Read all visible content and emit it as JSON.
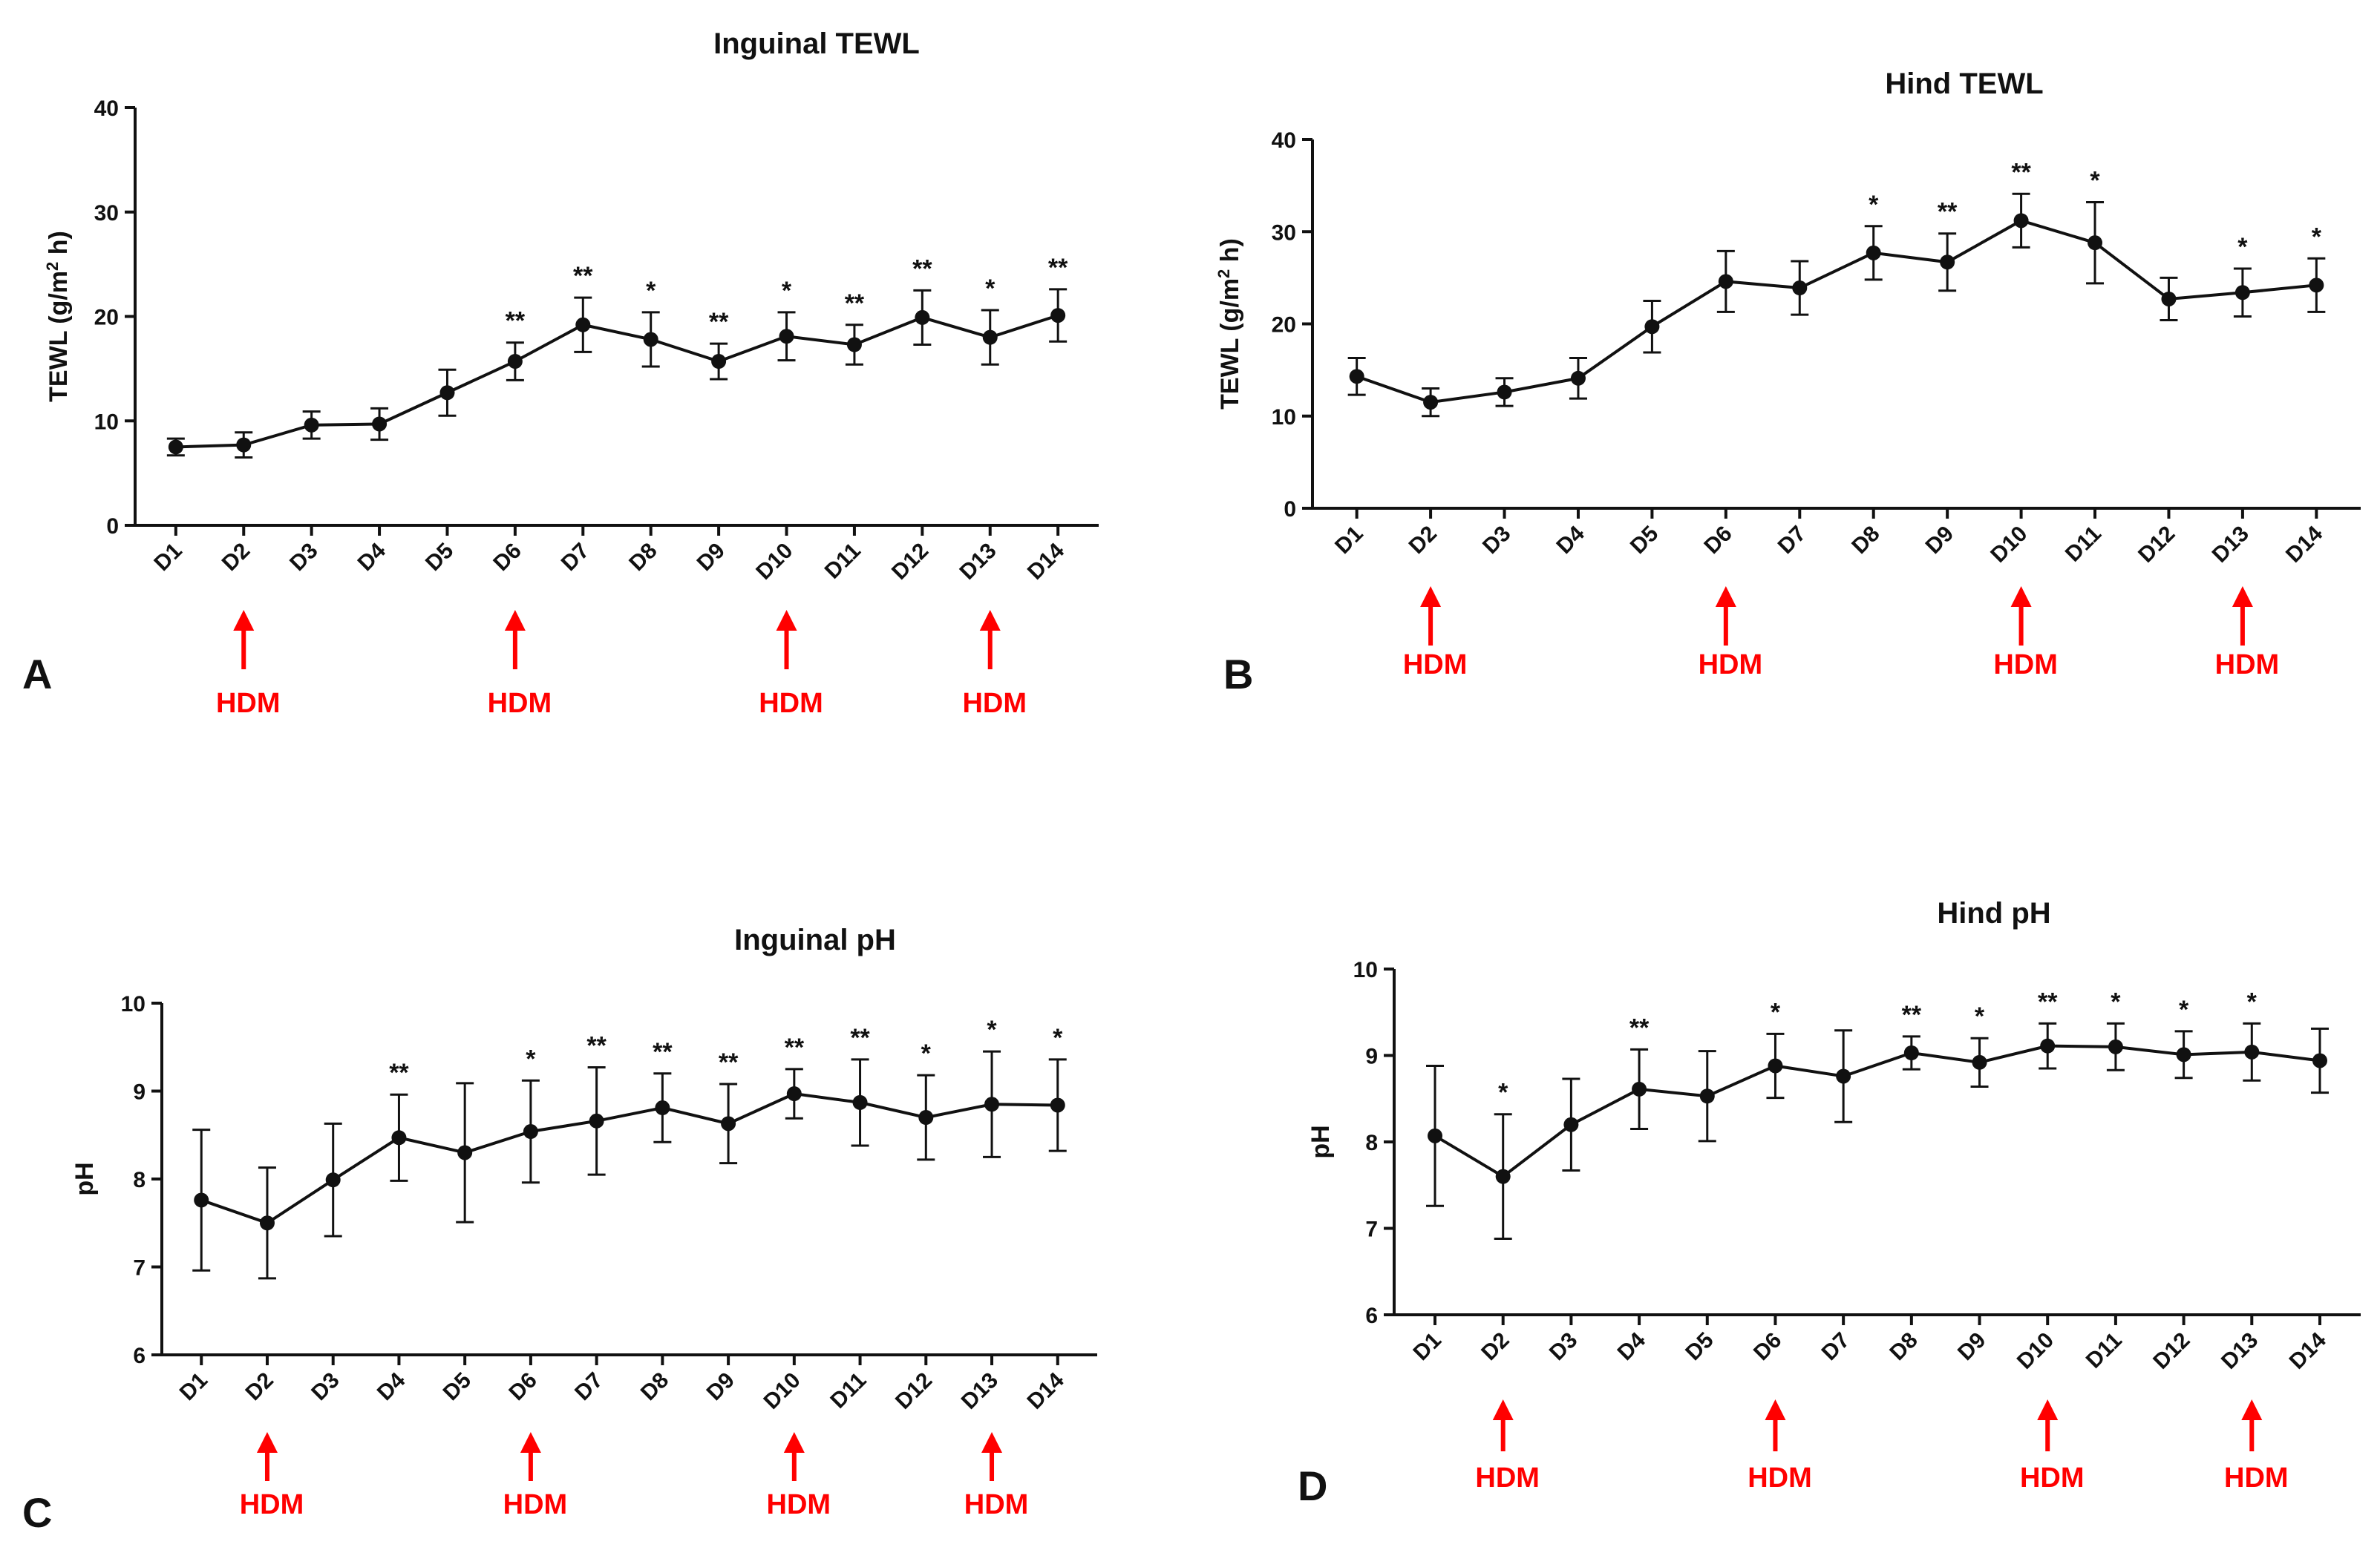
{
  "figure": {
    "arrow_color": "#ff0000",
    "line_color": "#111111"
  },
  "chart_data": [
    {
      "panel": "A",
      "type": "line",
      "title": "Inguinal TEWL",
      "ylabel_pre": "TEWL (g/m",
      "ylabel_sup": "2",
      "ylabel_post": " h)",
      "xlabel": "",
      "categories": [
        "D1",
        "D2",
        "D3",
        "D4",
        "D5",
        "D6",
        "D7",
        "D8",
        "D9",
        "D10",
        "D11",
        "D12",
        "D13",
        "D14"
      ],
      "ylim": [
        0,
        40
      ],
      "yticks": [
        0,
        10,
        20,
        30,
        40
      ],
      "ytick_labels": [
        "0",
        "10",
        "20",
        "30",
        "40"
      ],
      "series": [
        {
          "name": "Inguinal TEWL",
          "values": [
            7.5,
            7.7,
            9.6,
            9.7,
            12.7,
            15.7,
            19.2,
            17.8,
            15.7,
            18.1,
            17.3,
            19.9,
            18.0,
            20.1
          ],
          "errors": [
            0.8,
            1.2,
            1.3,
            1.5,
            2.2,
            1.8,
            2.6,
            2.6,
            1.7,
            2.3,
            1.9,
            2.6,
            2.6,
            2.5
          ]
        }
      ],
      "significance": [
        "",
        "",
        "",
        "",
        "",
        "**",
        "**",
        "*",
        "**",
        "*",
        "**",
        "**",
        "*",
        "**"
      ],
      "hdm_label": "HDM",
      "hdm_days": [
        "D2",
        "D6",
        "D10",
        "D13"
      ]
    },
    {
      "panel": "B",
      "type": "line",
      "title": "Hind TEWL",
      "ylabel_pre": "TEWL (g/m",
      "ylabel_sup": "2",
      "ylabel_post": " h)",
      "xlabel": "",
      "categories": [
        "D1",
        "D2",
        "D3",
        "D4",
        "D5",
        "D6",
        "D7",
        "D8",
        "D9",
        "D10",
        "D11",
        "D12",
        "D13",
        "D14"
      ],
      "ylim": [
        0,
        40
      ],
      "yticks": [
        0,
        10,
        20,
        30,
        40
      ],
      "ytick_labels": [
        "0",
        "10",
        "20",
        "30",
        "40"
      ],
      "series": [
        {
          "name": "Hind TEWL",
          "values": [
            14.3,
            11.5,
            12.6,
            14.1,
            19.7,
            24.6,
            23.9,
            27.7,
            26.7,
            31.2,
            28.8,
            22.7,
            23.4,
            24.2
          ],
          "errors": [
            2.0,
            1.5,
            1.5,
            2.2,
            2.8,
            3.3,
            2.9,
            2.9,
            3.1,
            2.9,
            4.4,
            2.3,
            2.6,
            2.9
          ]
        }
      ],
      "significance": [
        "",
        "",
        "",
        "",
        "",
        "",
        "",
        "*",
        "**",
        "**",
        "*",
        "",
        "*",
        "*"
      ],
      "hdm_label": "HDM",
      "hdm_days": [
        "D2",
        "D6",
        "D10",
        "D13"
      ]
    },
    {
      "panel": "C",
      "type": "line",
      "title": "Inguinal pH",
      "ylabel_pre": "pH",
      "ylabel_sup": "",
      "ylabel_post": "",
      "xlabel": "",
      "categories": [
        "D1",
        "D2",
        "D3",
        "D4",
        "D5",
        "D6",
        "D7",
        "D8",
        "D9",
        "D10",
        "D11",
        "D12",
        "D13",
        "D14"
      ],
      "ylim": [
        6,
        10
      ],
      "yticks": [
        6,
        7,
        8,
        9,
        10
      ],
      "ytick_labels": [
        "6",
        "7",
        "8",
        "9",
        "10"
      ],
      "series": [
        {
          "name": "Inguinal pH",
          "values": [
            7.76,
            7.5,
            7.99,
            8.47,
            8.3,
            8.54,
            8.66,
            8.81,
            8.63,
            8.97,
            8.87,
            8.7,
            8.85,
            8.84
          ],
          "errors": [
            0.8,
            0.63,
            0.64,
            0.49,
            0.79,
            0.58,
            0.61,
            0.39,
            0.45,
            0.28,
            0.49,
            0.48,
            0.6,
            0.52
          ]
        }
      ],
      "significance": [
        "",
        "",
        "",
        "**",
        "",
        "*",
        "**",
        "**",
        "**",
        "**",
        "**",
        "*",
        "*",
        "*"
      ],
      "hdm_label": "HDM",
      "hdm_days": [
        "D2",
        "D6",
        "D10",
        "D13"
      ]
    },
    {
      "panel": "D",
      "type": "line",
      "title": "Hind pH",
      "ylabel_pre": "pH",
      "ylabel_sup": "",
      "ylabel_post": "",
      "xlabel": "",
      "categories": [
        "D1",
        "D2",
        "D3",
        "D4",
        "D5",
        "D6",
        "D7",
        "D8",
        "D9",
        "D10",
        "D11",
        "D12",
        "D13",
        "D14"
      ],
      "ylim": [
        6,
        10
      ],
      "yticks": [
        6,
        7,
        8,
        9,
        10
      ],
      "ytick_labels": [
        "6",
        "7",
        "8",
        "9",
        "10"
      ],
      "series": [
        {
          "name": "Hind pH",
          "values": [
            8.07,
            7.6,
            8.2,
            8.61,
            8.53,
            8.88,
            8.76,
            9.03,
            8.92,
            9.11,
            9.1,
            9.01,
            9.04,
            8.94
          ],
          "errors": [
            0.81,
            0.72,
            0.53,
            0.46,
            0.52,
            0.37,
            0.53,
            0.19,
            0.28,
            0.26,
            0.27,
            0.27,
            0.33,
            0.37
          ]
        }
      ],
      "significance": [
        "",
        "*",
        "",
        "**",
        "",
        "*",
        "",
        "**",
        "*",
        "**",
        "*",
        "*",
        "*",
        ""
      ],
      "hdm_label": "HDM",
      "hdm_days": [
        "D2",
        "D6",
        "D10",
        "D13"
      ]
    }
  ]
}
